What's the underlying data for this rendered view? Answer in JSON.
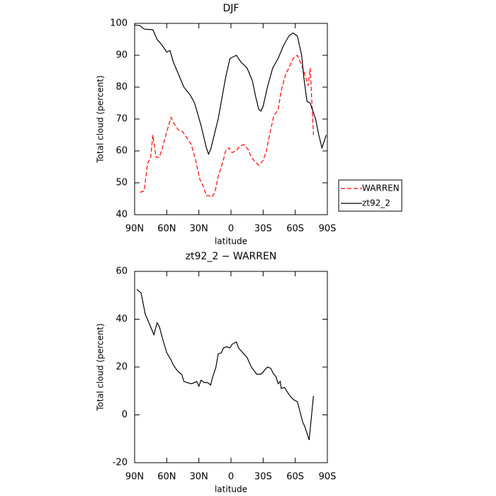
{
  "chart_data": [
    {
      "type": "line",
      "title": "DJF",
      "xlabel": "latitude",
      "ylabel": "Total cloud (percent)",
      "xlim": [
        90,
        -90
      ],
      "xticks": [
        {
          "value": 90,
          "label": "90N"
        },
        {
          "value": 60,
          "label": "60N"
        },
        {
          "value": 30,
          "label": "30N"
        },
        0,
        {
          "value": -30,
          "label": "30S"
        },
        {
          "value": -60,
          "label": "60S"
        },
        {
          "value": -90,
          "label": "90S"
        }
      ],
      "ylim": [
        40,
        100
      ],
      "yticks": [
        40,
        50,
        60,
        70,
        80,
        90,
        100
      ],
      "legend": "right",
      "series": [
        {
          "name": "WARREN",
          "color": "#ff0000",
          "linestyle": "dashed",
          "x": [
            85,
            81,
            78,
            75,
            73,
            70,
            67,
            64,
            60,
            56,
            54,
            49,
            45,
            41,
            37,
            33,
            29,
            26,
            23,
            21,
            18,
            15,
            12,
            8,
            5,
            2,
            -1,
            -5,
            -8,
            -12,
            -16,
            -19,
            -23,
            -26,
            -30,
            -33,
            -36,
            -40,
            -44,
            -47,
            -51,
            -54,
            -58,
            -62,
            -66,
            -69,
            -72,
            -74,
            -77
          ],
          "values": [
            47,
            47.5,
            56,
            58,
            65,
            58,
            58,
            61,
            66,
            70.5,
            69,
            66.5,
            66,
            64,
            62,
            57,
            51,
            49,
            46,
            46,
            45.5,
            47,
            52,
            56,
            60,
            61,
            59.5,
            60,
            61.5,
            62,
            60.5,
            58,
            56.5,
            55.5,
            57,
            60,
            65,
            71,
            73,
            79,
            84,
            86,
            89,
            90,
            87,
            84,
            80.5,
            86,
            65
          ]
        },
        {
          "name": "zt92_2",
          "color": "#000000",
          "linestyle": "solid",
          "x": [
            90,
            85,
            81,
            73,
            69,
            64,
            60,
            57,
            54,
            49,
            44,
            38,
            34,
            28,
            23,
            21,
            19,
            12,
            5,
            1,
            -5,
            -9,
            -15,
            -20,
            -23,
            -26,
            -28,
            -30,
            -34,
            -39,
            -44,
            -49,
            -54,
            -58,
            -62,
            -66,
            -68,
            -71,
            -74,
            -79,
            -82,
            -85,
            -89
          ],
          "values": [
            99.5,
            99.3,
            98.2,
            98,
            95,
            93,
            91,
            91.5,
            88,
            84,
            80,
            77.5,
            75,
            68,
            61,
            59,
            60.5,
            70,
            83,
            89,
            90,
            88,
            86,
            82,
            77,
            73,
            72.5,
            74,
            80,
            86,
            89,
            93,
            96,
            97,
            96,
            90,
            83,
            75.5,
            75,
            70,
            65,
            61,
            65
          ]
        }
      ]
    },
    {
      "type": "line",
      "title": "zt92_2 − WARREN",
      "xlabel": "latitude",
      "ylabel": "Total cloud (percent)",
      "xlim": [
        90,
        -90
      ],
      "xticks": [
        {
          "value": 90,
          "label": "90N"
        },
        {
          "value": 60,
          "label": "60N"
        },
        {
          "value": 30,
          "label": "30N"
        },
        0,
        {
          "value": -30,
          "label": "30S"
        },
        {
          "value": -60,
          "label": "60S"
        },
        {
          "value": -90,
          "label": "90S"
        }
      ],
      "ylim": [
        -20,
        60
      ],
      "yticks": [
        -20,
        0,
        20,
        40,
        60
      ],
      "series": [
        {
          "color": "#000000",
          "linestyle": "solid",
          "x": [
            88,
            84,
            80,
            78,
            72,
            69,
            67,
            64,
            60,
            56,
            54,
            51,
            48,
            46,
            44,
            41,
            37,
            34,
            32,
            30,
            28,
            25,
            22,
            19,
            17,
            14,
            12,
            9,
            7,
            4,
            1,
            -1,
            -5,
            -7,
            -11,
            -15,
            -16,
            -19,
            -24,
            -28,
            -30,
            -34,
            -37,
            -40,
            -42,
            -44,
            -46,
            -47,
            -50,
            -52,
            -55,
            -58,
            -62,
            -67,
            -69,
            -73,
            -77
          ],
          "values": [
            52.5,
            51,
            42,
            40,
            33.5,
            38.5,
            37,
            32,
            26,
            23,
            21,
            19,
            17.5,
            17,
            14,
            13.5,
            13,
            13.5,
            14,
            12,
            14.5,
            13.5,
            13.5,
            12.5,
            16,
            20,
            25.5,
            26,
            28,
            28.5,
            28,
            29.5,
            30.5,
            28,
            26,
            24,
            23,
            20,
            17,
            17,
            18,
            20,
            19.5,
            17,
            16,
            13,
            14,
            11,
            11.5,
            10,
            8,
            6.5,
            5.5,
            -3,
            -5,
            -10.5,
            8
          ]
        }
      ]
    }
  ]
}
